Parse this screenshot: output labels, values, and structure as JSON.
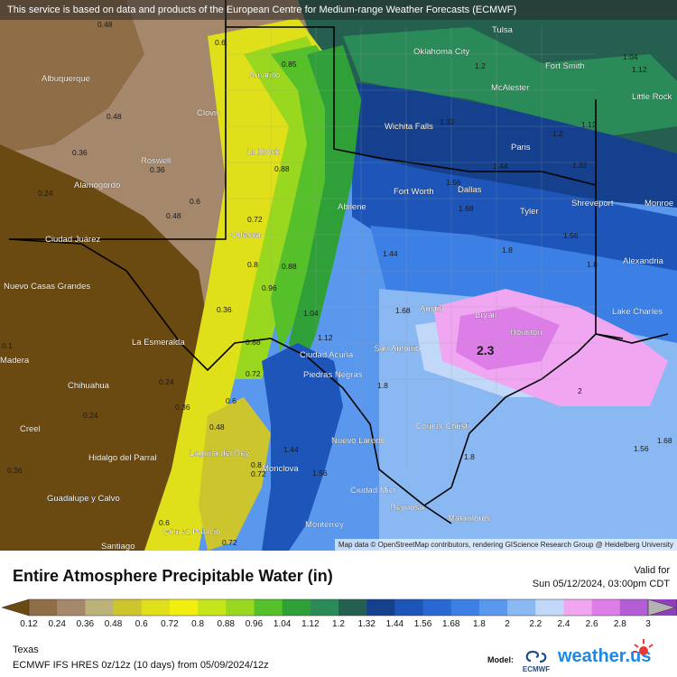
{
  "map": {
    "banner": "This service is based on data and products of the European Centre for Medium-range Weather Forecasts (ECMWF)",
    "credit": "Map data © OpenStreetMap contributors, rendering GIScience Research Group @ Heidelberg University",
    "cities": [
      "Tulsa",
      "Oklahoma City",
      "Fort Smith",
      "Little Rock",
      "McAlester",
      "Albuquerque",
      "Amarillo",
      "Clovis",
      "Lubbock",
      "Roswell",
      "Wichita Falls",
      "Paris",
      "Alamogordo",
      "Fort Worth",
      "Dallas",
      "Abilene",
      "Shreveport",
      "Monroe",
      "Tyler",
      "Ciudad Juárez",
      "Odessa",
      "Alexandria",
      "Nuevo Casas Grandes",
      "Bryan",
      "Austin",
      "Lake Charles",
      "Houston",
      "La Esmeralda",
      "Ciudad Acuña",
      "San Antonio",
      "Piedras Negras",
      "Chihuahua",
      "Corpus Christi",
      "Nuevo Laredo",
      "Creel",
      "Hidalgo del Parral",
      "Laguna del Rey",
      "Monclova",
      "Ciudad Mier",
      "Reynosa",
      "Matamoros",
      "Guadalupe y Calvo",
      "Monterrey",
      "Gómez Palacio",
      "Santiago",
      "Madera"
    ],
    "values": [
      "0.48",
      "0.6",
      "0.85",
      "1.2",
      "1.04",
      "1.12",
      "0.48",
      "0.36",
      "0.36",
      "1.32",
      "1.2",
      "1.12",
      "0.24",
      "0.6",
      "0.88",
      "1.56",
      "1.44",
      "1.32",
      "0.48",
      "0.72",
      "1.68",
      "1.56",
      "1.8",
      "0.8",
      "0.88",
      "1.44",
      "1.8",
      "0.96",
      "1.04",
      "0.36",
      "1.68",
      "0.1",
      "2.3",
      "0.88",
      "1.12",
      "0.24",
      "0.72",
      "1.8",
      "0.6",
      "0.36",
      "0.24",
      "0.48",
      "1.44",
      "0.36",
      "0.8",
      "0.72",
      "1.56",
      "1.8",
      "1.68",
      "1.56",
      "2",
      "0.6",
      "0.72"
    ]
  },
  "header": {
    "title": "Entire Atmosphere Precipitable Water (in)",
    "valid_label": "Valid for",
    "valid_time": "Sun 05/12/2024, 03:00pm CDT"
  },
  "legend": {
    "ticks": [
      "0.12",
      "0.24",
      "0.36",
      "0.48",
      "0.6",
      "0.72",
      "0.8",
      "0.88",
      "0.96",
      "1.04",
      "1.12",
      "1.2",
      "1.32",
      "1.44",
      "1.56",
      "1.68",
      "1.8",
      "2",
      "2.2",
      "2.4",
      "2.6",
      "2.8",
      "3"
    ],
    "colors": [
      "#6b4a12",
      "#8f6e47",
      "#a5876c",
      "#bcb37a",
      "#cdc52e",
      "#e0e01a",
      "#f2ee10",
      "#c6e61b",
      "#9ad81f",
      "#55c02a",
      "#2fa038",
      "#2a8b58",
      "#245f4f",
      "#14408e",
      "#1d55b8",
      "#2a68d3",
      "#3c80e6",
      "#5a98ee",
      "#8ab8f2",
      "#c2d8f8",
      "#f0a6f0",
      "#dd7ee8",
      "#b45ed6",
      "#8e3fba",
      "#6b2a8e",
      "#b3b3b3"
    ]
  },
  "footer": {
    "region": "Texas",
    "run": "ECMWF IFS HRES 0z/12z (10 days) from 05/09/2024/12z",
    "model_label": "Model:",
    "model_logo_text": "ECMWF",
    "brand": "weather.us"
  },
  "colors": {
    "city_text": "#ffffff",
    "state_border": "#000000",
    "county_line": "#9a9a9a"
  }
}
